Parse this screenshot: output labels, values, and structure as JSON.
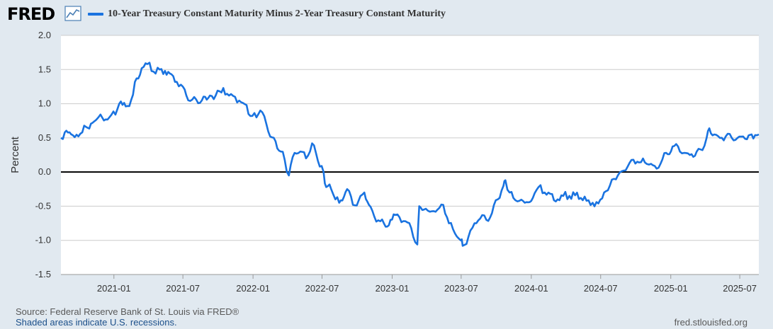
{
  "header": {
    "logo_text": "FRED",
    "logo_icon": "line-chart-icon"
  },
  "colors": {
    "series": "#1a73e0",
    "background": "#e1e9f0",
    "plot_bg": "#ffffff",
    "grid": "#cccccc",
    "zero_line": "#000000"
  },
  "chart_data": {
    "type": "line",
    "title": "",
    "xlabel": "",
    "ylabel": "Percent",
    "ylim": [
      -1.5,
      2.0
    ],
    "xlim": [
      "2020-08-15",
      "2025-08-20"
    ],
    "y_ticks": [
      "2.0",
      "1.5",
      "1.0",
      "0.5",
      "0.0",
      "-0.5",
      "-1.0",
      "-1.5"
    ],
    "y_tick_values": [
      2.0,
      1.5,
      1.0,
      0.5,
      0.0,
      -0.5,
      -1.0,
      -1.5
    ],
    "x_ticks": [
      "2021-01",
      "2021-07",
      "2022-01",
      "2022-07",
      "2023-01",
      "2023-07",
      "2024-01",
      "2024-07",
      "2025-01",
      "2025-07"
    ],
    "grid": true,
    "zero_line": true,
    "legend_position": "top-left",
    "series": [
      {
        "name": "10-Year Treasury Constant Maturity Minus 2-Year Treasury Constant Maturity",
        "color": "#1a73e0",
        "points": [
          [
            "2020-08-15",
            0.5
          ],
          [
            "2020-08-25",
            0.58
          ],
          [
            "2020-09-15",
            0.54
          ],
          [
            "2020-10-10",
            0.58
          ],
          [
            "2020-10-20",
            0.66
          ],
          [
            "2020-11-10",
            0.74
          ],
          [
            "2020-12-01",
            0.8
          ],
          [
            "2020-12-20",
            0.8
          ],
          [
            "2021-01-05",
            0.84
          ],
          [
            "2021-01-15",
            1.0
          ],
          [
            "2021-02-01",
            0.96
          ],
          [
            "2021-02-15",
            1.05
          ],
          [
            "2021-02-25",
            1.32
          ],
          [
            "2021-03-15",
            1.52
          ],
          [
            "2021-03-30",
            1.58
          ],
          [
            "2021-04-15",
            1.47
          ],
          [
            "2021-05-01",
            1.5
          ],
          [
            "2021-05-15",
            1.48
          ],
          [
            "2021-06-01",
            1.43
          ],
          [
            "2021-06-15",
            1.32
          ],
          [
            "2021-07-01",
            1.25
          ],
          [
            "2021-07-10",
            1.12
          ],
          [
            "2021-07-20",
            1.04
          ],
          [
            "2021-08-05",
            1.06
          ],
          [
            "2021-08-20",
            1.05
          ],
          [
            "2021-09-10",
            1.12
          ],
          [
            "2021-09-25",
            1.12
          ],
          [
            "2021-10-15",
            1.23
          ],
          [
            "2021-10-30",
            1.12
          ],
          [
            "2021-11-15",
            1.1
          ],
          [
            "2021-12-01",
            1.02
          ],
          [
            "2021-12-15",
            0.98
          ],
          [
            "2021-12-25",
            0.82
          ],
          [
            "2022-01-10",
            0.8
          ],
          [
            "2022-01-20",
            0.9
          ],
          [
            "2022-02-05",
            0.7
          ],
          [
            "2022-02-15",
            0.52
          ],
          [
            "2022-03-01",
            0.45
          ],
          [
            "2022-03-15",
            0.3
          ],
          [
            "2022-03-25",
            0.18
          ],
          [
            "2022-04-05",
            -0.05
          ],
          [
            "2022-04-20",
            0.28
          ],
          [
            "2022-05-05",
            0.3
          ],
          [
            "2022-05-20",
            0.2
          ],
          [
            "2022-06-05",
            0.42
          ],
          [
            "2022-06-15",
            0.28
          ],
          [
            "2022-06-25",
            0.08
          ],
          [
            "2022-07-05",
            0.0
          ],
          [
            "2022-07-12",
            -0.22
          ],
          [
            "2022-07-25",
            -0.25
          ],
          [
            "2022-08-05",
            -0.4
          ],
          [
            "2022-08-15",
            -0.45
          ],
          [
            "2022-09-05",
            -0.25
          ],
          [
            "2022-09-20",
            -0.48
          ],
          [
            "2022-10-05",
            -0.42
          ],
          [
            "2022-10-20",
            -0.3
          ],
          [
            "2022-11-01",
            -0.48
          ],
          [
            "2022-11-15",
            -0.65
          ],
          [
            "2022-12-01",
            -0.72
          ],
          [
            "2022-12-15",
            -0.8
          ],
          [
            "2023-01-05",
            -0.62
          ],
          [
            "2023-01-20",
            -0.66
          ],
          [
            "2023-02-05",
            -0.72
          ],
          [
            "2023-02-20",
            -0.82
          ],
          [
            "2023-03-08",
            -1.06
          ],
          [
            "2023-03-13",
            -0.5
          ],
          [
            "2023-03-25",
            -0.55
          ],
          [
            "2023-04-10",
            -0.58
          ],
          [
            "2023-04-30",
            -0.55
          ],
          [
            "2023-05-15",
            -0.48
          ],
          [
            "2023-05-30",
            -0.75
          ],
          [
            "2023-06-15",
            -0.9
          ],
          [
            "2023-06-30",
            -1.0
          ],
          [
            "2023-07-05",
            -1.08
          ],
          [
            "2023-07-20",
            -0.95
          ],
          [
            "2023-08-05",
            -0.75
          ],
          [
            "2023-08-20",
            -0.68
          ],
          [
            "2023-09-05",
            -0.7
          ],
          [
            "2023-09-20",
            -0.6
          ],
          [
            "2023-10-05",
            -0.4
          ],
          [
            "2023-10-20",
            -0.2
          ],
          [
            "2023-10-25",
            -0.12
          ],
          [
            "2023-11-05",
            -0.3
          ],
          [
            "2023-11-15",
            -0.38
          ],
          [
            "2023-12-01",
            -0.42
          ],
          [
            "2023-12-15",
            -0.45
          ],
          [
            "2024-01-05",
            -0.38
          ],
          [
            "2024-01-20",
            -0.22
          ],
          [
            "2024-02-05",
            -0.3
          ],
          [
            "2024-02-20",
            -0.32
          ],
          [
            "2024-03-10",
            -0.4
          ],
          [
            "2024-03-25",
            -0.35
          ],
          [
            "2024-04-10",
            -0.35
          ],
          [
            "2024-04-25",
            -0.34
          ],
          [
            "2024-05-10",
            -0.38
          ],
          [
            "2024-05-25",
            -0.42
          ],
          [
            "2024-06-10",
            -0.45
          ],
          [
            "2024-06-25",
            -0.46
          ],
          [
            "2024-07-10",
            -0.3
          ],
          [
            "2024-07-25",
            -0.2
          ],
          [
            "2024-08-05",
            -0.1
          ],
          [
            "2024-08-15",
            -0.05
          ],
          [
            "2024-08-30",
            0.02
          ],
          [
            "2024-09-10",
            0.08
          ],
          [
            "2024-09-25",
            0.18
          ],
          [
            "2024-10-10",
            0.14
          ],
          [
            "2024-10-25",
            0.14
          ],
          [
            "2024-11-10",
            0.12
          ],
          [
            "2024-11-25",
            0.05
          ],
          [
            "2024-12-05",
            0.12
          ],
          [
            "2024-12-20",
            0.28
          ],
          [
            "2025-01-10",
            0.38
          ],
          [
            "2025-01-25",
            0.3
          ],
          [
            "2025-02-05",
            0.28
          ],
          [
            "2025-02-20",
            0.25
          ],
          [
            "2025-03-10",
            0.3
          ],
          [
            "2025-03-25",
            0.32
          ],
          [
            "2025-04-05",
            0.5
          ],
          [
            "2025-04-12",
            0.64
          ],
          [
            "2025-04-25",
            0.55
          ],
          [
            "2025-05-10",
            0.5
          ],
          [
            "2025-05-25",
            0.52
          ],
          [
            "2025-06-10",
            0.5
          ],
          [
            "2025-06-25",
            0.5
          ],
          [
            "2025-07-10",
            0.52
          ],
          [
            "2025-07-20",
            0.48
          ],
          [
            "2025-08-01",
            0.55
          ],
          [
            "2025-08-20",
            0.55
          ]
        ]
      }
    ]
  },
  "footer": {
    "source": "Source: Federal Reserve Bank of St. Louis via FRED®",
    "recession_note": "Shaded areas indicate U.S. recessions.",
    "site": "fred.stlouisfed.org"
  }
}
